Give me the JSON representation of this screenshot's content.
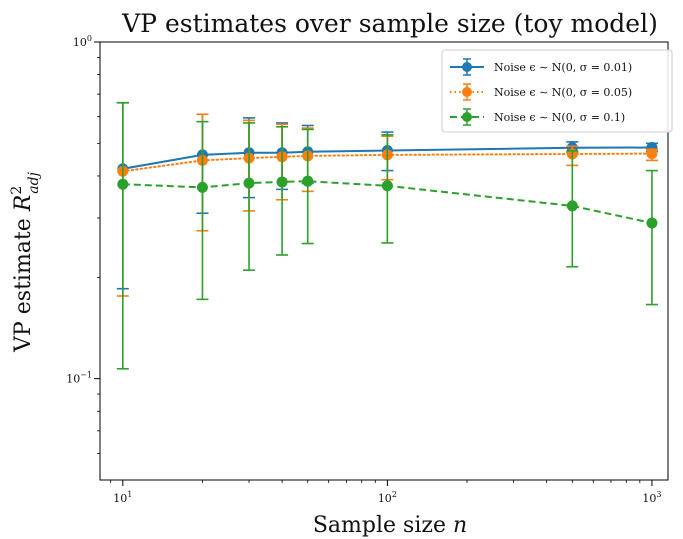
{
  "chart_data": {
    "type": "line",
    "title": "VP estimates over sample size (toy model)",
    "xlabel": "Sample size n",
    "ylabel": "VP estimate R",
    "ylabel_sup": "2",
    "ylabel_sub": "adj",
    "xscale": "log",
    "yscale": "log",
    "xlim": [
      8.2,
      1150
    ],
    "ylim": [
      0.05,
      1.0
    ],
    "x_ticks": [
      {
        "value": 10,
        "label": "10",
        "sup": "1"
      },
      {
        "value": 100,
        "label": "10",
        "sup": "2"
      },
      {
        "value": 1000,
        "label": "10",
        "sup": "3"
      }
    ],
    "y_ticks": [
      {
        "value": 0.1,
        "label": "10",
        "sup": "−1"
      },
      {
        "value": 1.0,
        "label": "10",
        "sup": "0"
      }
    ],
    "grid": false,
    "legend_position": "upper-right",
    "x": [
      10,
      20,
      30,
      40,
      50,
      100,
      500,
      1000
    ],
    "series": [
      {
        "name": "Noise ϵ ∼ N(0, σ = 0.01)",
        "color": "#1f77b4",
        "linestyle": "solid",
        "values": [
          0.42,
          0.462,
          0.469,
          0.469,
          0.472,
          0.476,
          0.485,
          0.486
        ],
        "err_low": [
          0.185,
          0.31,
          0.345,
          0.365,
          0.38,
          0.415,
          0.47,
          0.473
        ],
        "err_high": [
          0.66,
          0.61,
          0.595,
          0.575,
          0.565,
          0.54,
          0.505,
          0.5
        ]
      },
      {
        "name": "Noise ϵ ∼ N(0, σ = 0.05)",
        "color": "#ff7f0e",
        "linestyle": "dotted",
        "values": [
          0.413,
          0.445,
          0.452,
          0.456,
          0.459,
          0.462,
          0.465,
          0.466
        ],
        "err_low": [
          0.176,
          0.275,
          0.315,
          0.34,
          0.36,
          0.39,
          0.43,
          0.445
        ],
        "err_high": [
          0.66,
          0.61,
          0.585,
          0.57,
          0.555,
          0.525,
          0.49,
          0.48
        ]
      },
      {
        "name": "Noise ϵ ∼ N(0, σ = 0.1)",
        "color": "#2ca02c",
        "linestyle": "dashed",
        "values": [
          0.378,
          0.37,
          0.381,
          0.384,
          0.386,
          0.374,
          0.326,
          0.29
        ],
        "err_low": [
          0.107,
          0.172,
          0.21,
          0.233,
          0.252,
          0.253,
          0.215,
          0.166
        ],
        "err_high": [
          0.66,
          0.58,
          0.575,
          0.56,
          0.55,
          0.53,
          0.475,
          0.415
        ]
      }
    ]
  }
}
